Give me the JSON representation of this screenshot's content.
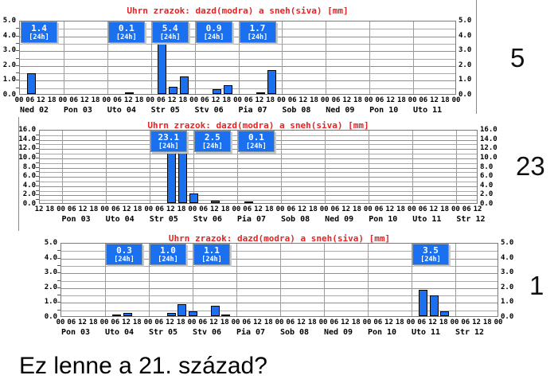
{
  "caption": {
    "text": "Ez lenne a 21. század?"
  },
  "annotations": [
    {
      "text": "5"
    },
    {
      "text": "23"
    },
    {
      "text": "1"
    }
  ],
  "colors": {
    "bar_blue": "#1a70ee",
    "title_red": "#e62222",
    "grid_gray": "#a9a9a9"
  },
  "badge_unit_label": "[24h]",
  "chart_data": [
    {
      "type": "bar",
      "title": "Uhrn zrazok: dazd(modra) a sneh(siva) [mm]",
      "ylabel": "mm",
      "ylim": [
        0,
        5
      ],
      "y_major_step": 1.0,
      "y_minor_step": 0.5,
      "y_tick_labels": [
        "0.0",
        "1.0",
        "2.0",
        "3.0",
        "4.0",
        "5.0"
      ],
      "x_first_hour": 0,
      "n_ticks": 41,
      "days": [
        "Ned 02",
        "Pon 03",
        "Uto 04",
        "Str 05",
        "Stv 06",
        "Pia 07",
        "Sob 08",
        "Ned 09",
        "Pon 10",
        "Uto 11"
      ],
      "series": [
        {
          "name": "dazd (modra)",
          "color": "#1a70ee",
          "bars": [
            {
              "day": "Ned 02",
              "hour": 6,
              "value": 1.4
            },
            {
              "day": "Uto 04",
              "hour": 12,
              "value": 0.1
            },
            {
              "day": "Str 05",
              "hour": 6,
              "value": 3.7
            },
            {
              "day": "Str 05",
              "hour": 12,
              "value": 0.5
            },
            {
              "day": "Str 05",
              "hour": 18,
              "value": 1.2
            },
            {
              "day": "Stv 06",
              "hour": 12,
              "value": 0.3
            },
            {
              "day": "Stv 06",
              "hour": 18,
              "value": 0.6
            },
            {
              "day": "Pia 07",
              "hour": 12,
              "value": 0.1
            },
            {
              "day": "Pia 07",
              "hour": 18,
              "value": 1.6
            }
          ]
        }
      ],
      "badges": [
        {
          "day": "Ned 02",
          "value": "1.4"
        },
        {
          "day": "Uto 04",
          "value": "0.1"
        },
        {
          "day": "Str 05",
          "value": "5.4"
        },
        {
          "day": "Stv 06",
          "value": "0.9"
        },
        {
          "day": "Pia 07",
          "value": "1.7"
        }
      ]
    },
    {
      "type": "bar",
      "title": "Uhrn zrazok: dazd(modra) a sneh(siva) [mm]",
      "ylabel": "mm",
      "ylim": [
        0,
        16
      ],
      "y_major_step": 2.0,
      "y_minor_step": 1.0,
      "y_tick_labels": [
        "0.0",
        "2.0",
        "4.0",
        "6.0",
        "8.0",
        "10.0",
        "12.0",
        "14.0",
        "16.0"
      ],
      "x_first_hour": 12,
      "n_ticks": 41,
      "days": [
        "Pon 03",
        "Uto 04",
        "Str 05",
        "Stv 06",
        "Pia 07",
        "Sob 08",
        "Ned 09",
        "Pon 10",
        "Uto 11",
        "Str 12"
      ],
      "series": [
        {
          "name": "dazd (modra)",
          "color": "#1a70ee",
          "bars": [
            {
              "day": "Str 05",
              "hour": 12,
              "value": 12.0
            },
            {
              "day": "Str 05",
              "hour": 18,
              "value": 11.1
            },
            {
              "day": "Stv 06",
              "hour": 0,
              "value": 2.0
            },
            {
              "day": "Stv 06",
              "hour": 12,
              "value": 0.5
            },
            {
              "day": "Pia 07",
              "hour": 6,
              "value": 0.1
            }
          ]
        }
      ],
      "badges": [
        {
          "day": "Str 05",
          "value": "23.1"
        },
        {
          "day": "Stv 06",
          "value": "2.5"
        },
        {
          "day": "Pia 07",
          "value": "0.1"
        }
      ]
    },
    {
      "type": "bar",
      "title": "Uhrn zrazok: dazd(modra) a sneh(siva) [mm]",
      "ylabel": "mm",
      "ylim": [
        0,
        5
      ],
      "y_major_step": 1.0,
      "y_minor_step": 0.5,
      "y_tick_labels": [
        "0.0",
        "1.0",
        "2.0",
        "3.0",
        "4.0",
        "5.0"
      ],
      "x_first_hour": 0,
      "n_ticks": 41,
      "days": [
        "Pon 03",
        "Uto 04",
        "Str 05",
        "Stv 06",
        "Pia 07",
        "Sob 08",
        "Ned 09",
        "Pon 10",
        "Uto 11",
        "Str 12"
      ],
      "series": [
        {
          "name": "dazd (modra)",
          "color": "#1a70ee",
          "bars": [
            {
              "day": "Uto 04",
              "hour": 6,
              "value": 0.1
            },
            {
              "day": "Uto 04",
              "hour": 12,
              "value": 0.2
            },
            {
              "day": "Str 05",
              "hour": 12,
              "value": 0.2
            },
            {
              "day": "Str 05",
              "hour": 18,
              "value": 0.8
            },
            {
              "day": "Stv 06",
              "hour": 0,
              "value": 0.3
            },
            {
              "day": "Stv 06",
              "hour": 12,
              "value": 0.7
            },
            {
              "day": "Stv 06",
              "hour": 18,
              "value": 0.1
            },
            {
              "day": "Uto 11",
              "hour": 6,
              "value": 1.8
            },
            {
              "day": "Uto 11",
              "hour": 12,
              "value": 1.4
            },
            {
              "day": "Uto 11",
              "hour": 18,
              "value": 0.3
            }
          ]
        }
      ],
      "badges": [
        {
          "day": "Uto 04",
          "value": "0.3"
        },
        {
          "day": "Str 05",
          "value": "1.0"
        },
        {
          "day": "Stv 06",
          "value": "1.1"
        },
        {
          "day": "Uto 11",
          "value": "3.5"
        }
      ]
    }
  ]
}
